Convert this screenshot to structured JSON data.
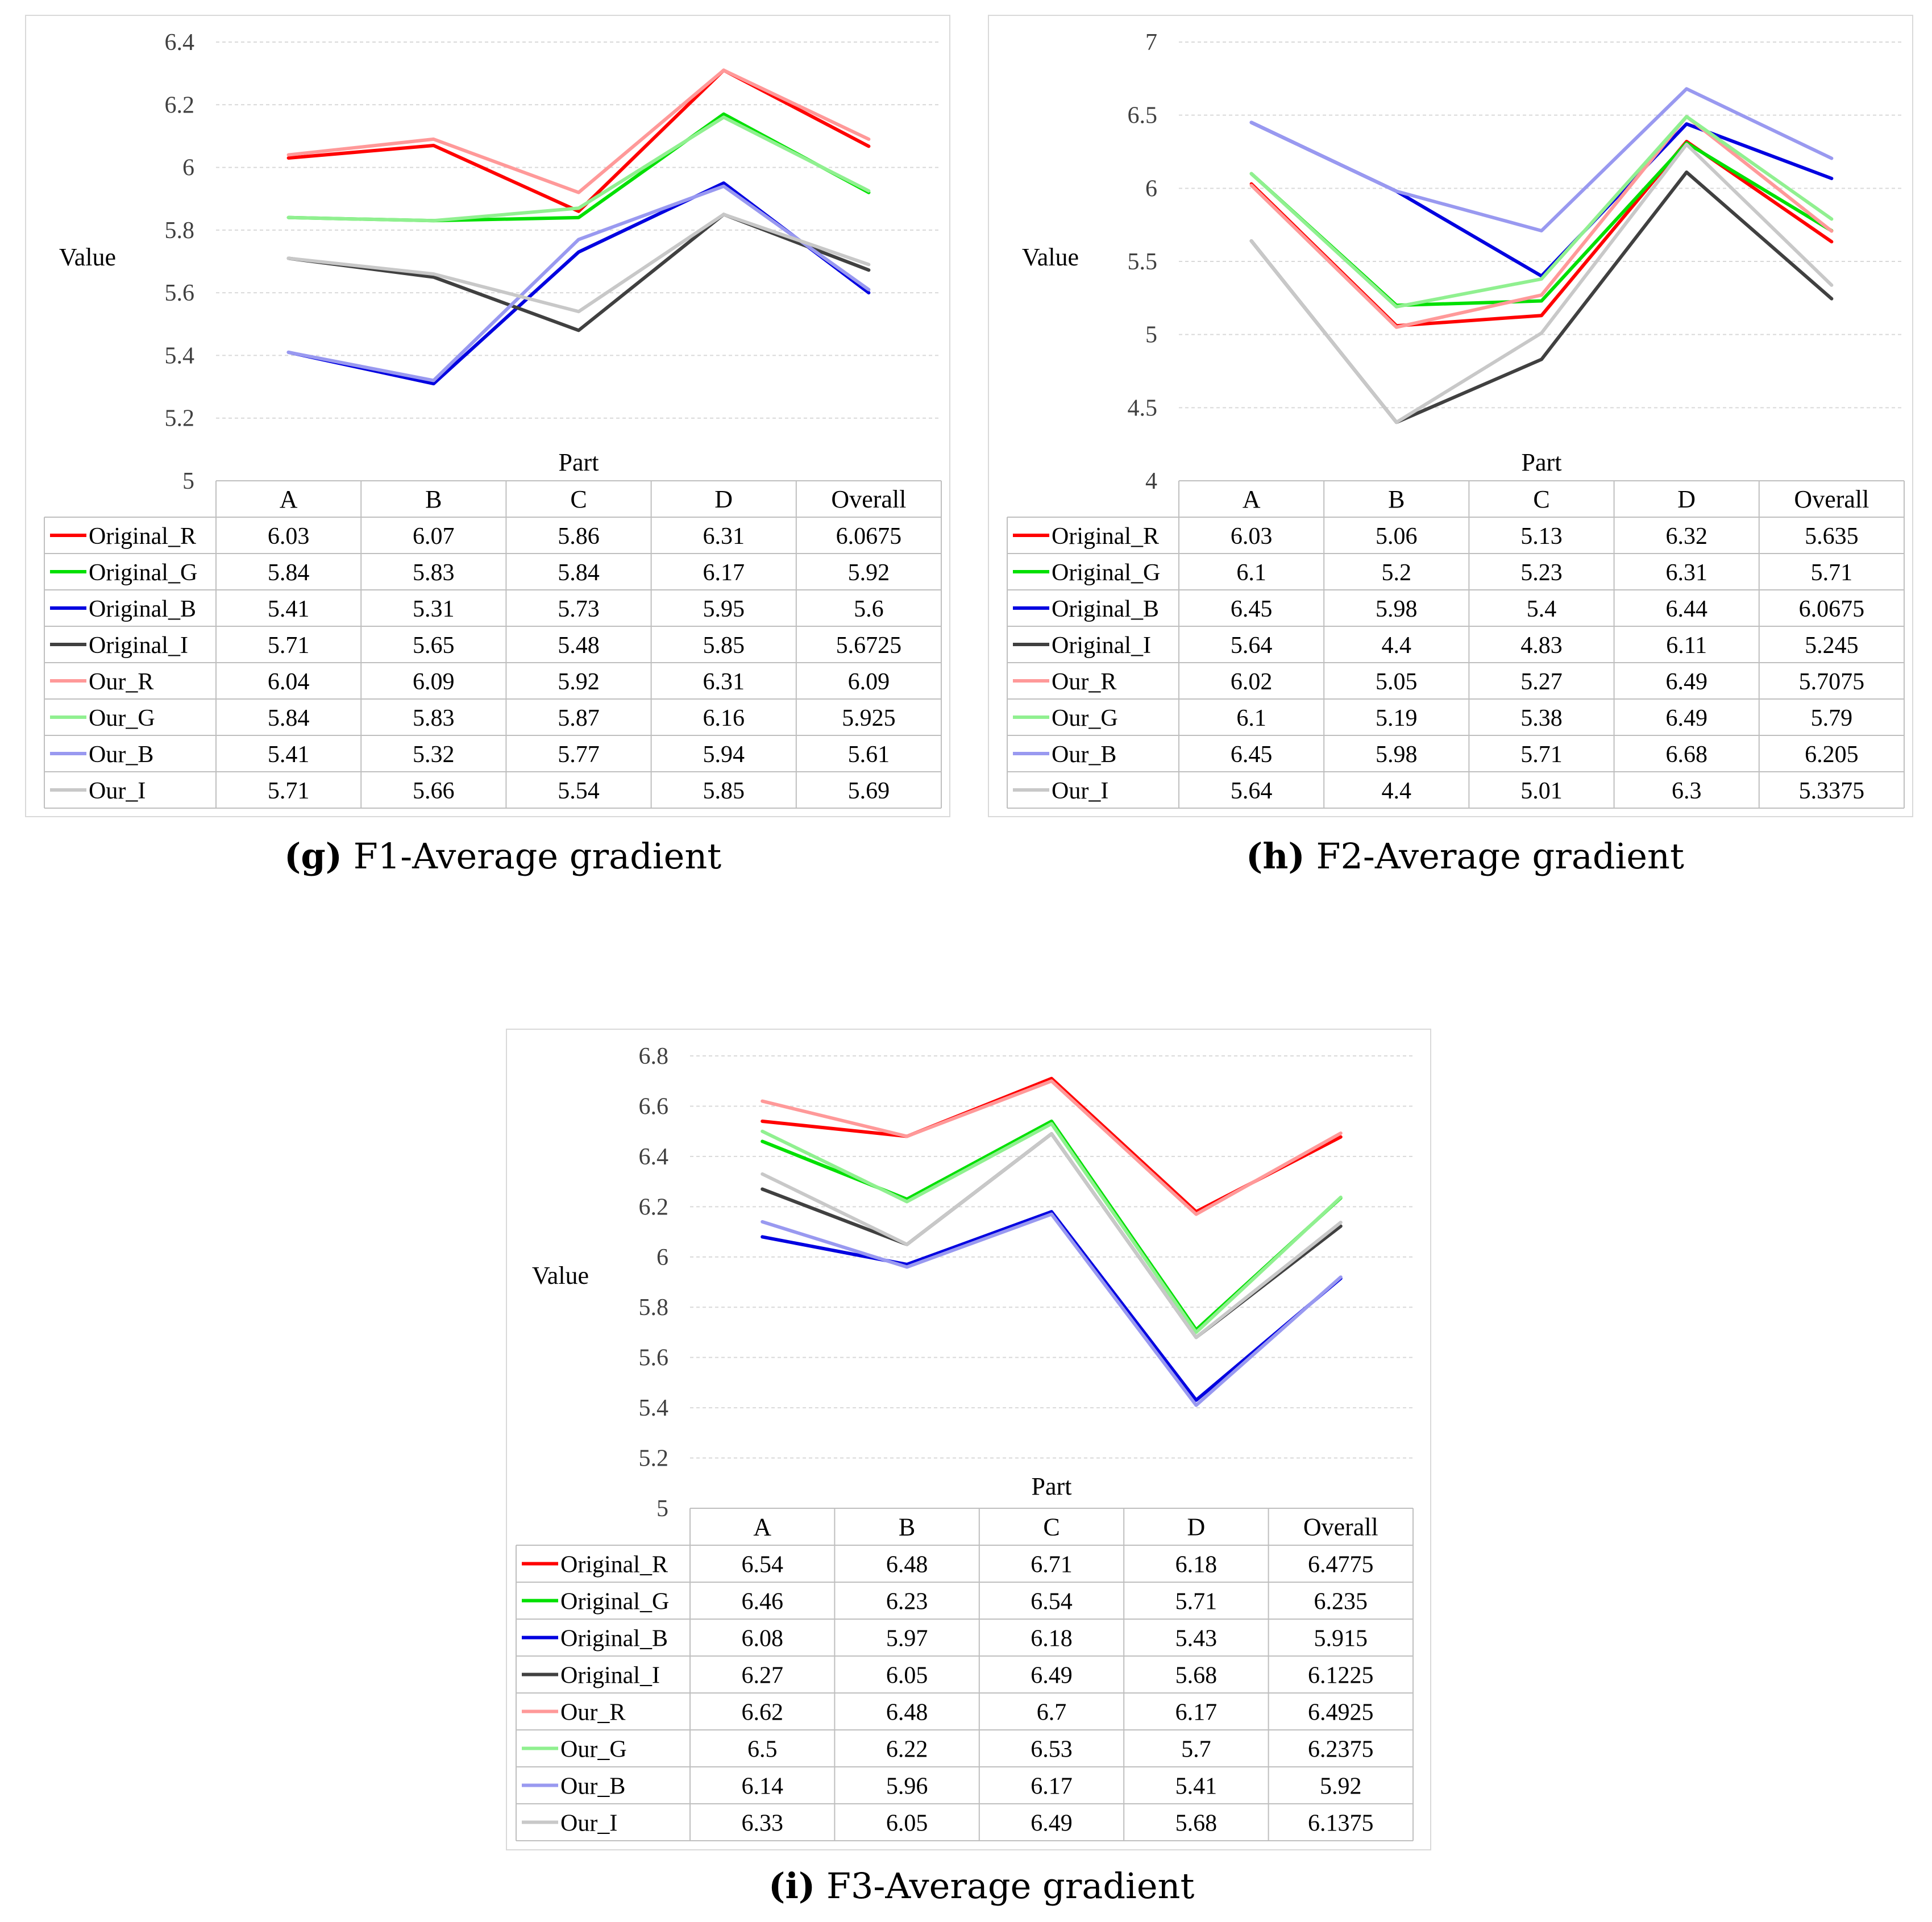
{
  "chart_data": [
    {
      "type": "line",
      "panel_label": "(g)",
      "caption_text": "F1-Average gradient",
      "ylabel": "Value",
      "xlabel": "Part",
      "ylim": [
        5,
        6.4
      ],
      "yticks": [
        5,
        5.2,
        5.4,
        5.6,
        5.8,
        6,
        6.2,
        6.4
      ],
      "ytick_labels": [
        "5",
        "5.2",
        "5.4",
        "5.6",
        "5.8",
        "6",
        "6.2",
        "6.4"
      ],
      "categories": [
        "A",
        "B",
        "C",
        "D",
        "Overall"
      ],
      "series": [
        {
          "name": "Original_R",
          "color": "#ff0000",
          "values": [
            6.03,
            6.07,
            5.86,
            6.31,
            6.0675
          ],
          "labels": [
            "6.03",
            "6.07",
            "5.86",
            "6.31",
            "6.0675"
          ]
        },
        {
          "name": "Original_G",
          "color": "#00e000",
          "values": [
            5.84,
            5.83,
            5.84,
            6.17,
            5.92
          ],
          "labels": [
            "5.84",
            "5.83",
            "5.84",
            "6.17",
            "5.92"
          ]
        },
        {
          "name": "Original_B",
          "color": "#0000e0",
          "values": [
            5.41,
            5.31,
            5.73,
            5.95,
            5.6
          ],
          "labels": [
            "5.41",
            "5.31",
            "5.73",
            "5.95",
            "5.6"
          ]
        },
        {
          "name": "Original_I",
          "color": "#404040",
          "values": [
            5.71,
            5.65,
            5.48,
            5.85,
            5.6725
          ],
          "labels": [
            "5.71",
            "5.65",
            "5.48",
            "5.85",
            "5.6725"
          ]
        },
        {
          "name": "Our_R",
          "color": "#ff9999",
          "values": [
            6.04,
            6.09,
            5.92,
            6.31,
            6.09
          ],
          "labels": [
            "6.04",
            "6.09",
            "5.92",
            "6.31",
            "6.09"
          ]
        },
        {
          "name": "Our_G",
          "color": "#90f090",
          "values": [
            5.84,
            5.83,
            5.87,
            6.16,
            5.925
          ],
          "labels": [
            "5.84",
            "5.83",
            "5.87",
            "6.16",
            "5.925"
          ]
        },
        {
          "name": "Our_B",
          "color": "#9999f0",
          "values": [
            5.41,
            5.32,
            5.77,
            5.94,
            5.61
          ],
          "labels": [
            "5.41",
            "5.32",
            "5.77",
            "5.94",
            "5.61"
          ]
        },
        {
          "name": "Our_I",
          "color": "#c8c8c8",
          "values": [
            5.71,
            5.66,
            5.54,
            5.85,
            5.69
          ],
          "labels": [
            "5.71",
            "5.66",
            "5.54",
            "5.85",
            "5.69"
          ]
        }
      ]
    },
    {
      "type": "line",
      "panel_label": "(h)",
      "caption_text": "F2-Average gradient",
      "ylabel": "Value",
      "xlabel": "Part",
      "ylim": [
        4,
        7
      ],
      "yticks": [
        4,
        4.5,
        5,
        5.5,
        6,
        6.5,
        7
      ],
      "ytick_labels": [
        "4",
        "4.5",
        "5",
        "5.5",
        "6",
        "6.5",
        "7"
      ],
      "categories": [
        "A",
        "B",
        "C",
        "D",
        "Overall"
      ],
      "series": [
        {
          "name": "Original_R",
          "color": "#ff0000",
          "values": [
            6.03,
            5.06,
            5.13,
            6.32,
            5.635
          ],
          "labels": [
            "6.03",
            "5.06",
            "5.13",
            "6.32",
            "5.635"
          ]
        },
        {
          "name": "Original_G",
          "color": "#00e000",
          "values": [
            6.1,
            5.2,
            5.23,
            6.31,
            5.71
          ],
          "labels": [
            "6.1",
            "5.2",
            "5.23",
            "6.31",
            "5.71"
          ]
        },
        {
          "name": "Original_B",
          "color": "#0000e0",
          "values": [
            6.45,
            5.98,
            5.4,
            6.44,
            6.0675
          ],
          "labels": [
            "6.45",
            "5.98",
            "5.4",
            "6.44",
            "6.0675"
          ]
        },
        {
          "name": "Original_I",
          "color": "#404040",
          "values": [
            5.64,
            4.4,
            4.83,
            6.11,
            5.245
          ],
          "labels": [
            "5.64",
            "4.4",
            "4.83",
            "6.11",
            "5.245"
          ]
        },
        {
          "name": "Our_R",
          "color": "#ff9999",
          "values": [
            6.02,
            5.05,
            5.27,
            6.49,
            5.7075
          ],
          "labels": [
            "6.02",
            "5.05",
            "5.27",
            "6.49",
            "5.7075"
          ]
        },
        {
          "name": "Our_G",
          "color": "#90f090",
          "values": [
            6.1,
            5.19,
            5.38,
            6.49,
            5.79
          ],
          "labels": [
            "6.1",
            "5.19",
            "5.38",
            "6.49",
            "5.79"
          ]
        },
        {
          "name": "Our_B",
          "color": "#9999f0",
          "values": [
            6.45,
            5.98,
            5.71,
            6.68,
            6.205
          ],
          "labels": [
            "6.45",
            "5.98",
            "5.71",
            "6.68",
            "6.205"
          ]
        },
        {
          "name": "Our_I",
          "color": "#c8c8c8",
          "values": [
            5.64,
            4.4,
            5.01,
            6.3,
            5.3375
          ],
          "labels": [
            "5.64",
            "4.4",
            "5.01",
            "6.3",
            "5.3375"
          ]
        }
      ]
    },
    {
      "type": "line",
      "panel_label": "(i)",
      "caption_text": "F3-Average gradient",
      "ylabel": "Value",
      "xlabel": "Part",
      "ylim": [
        5,
        6.8
      ],
      "yticks": [
        5,
        5.2,
        5.4,
        5.6,
        5.8,
        6,
        6.2,
        6.4,
        6.6,
        6.8
      ],
      "ytick_labels": [
        "5",
        "5.2",
        "5.4",
        "5.6",
        "5.8",
        "6",
        "6.2",
        "6.4",
        "6.6",
        "6.8"
      ],
      "categories": [
        "A",
        "B",
        "C",
        "D",
        "Overall"
      ],
      "series": [
        {
          "name": "Original_R",
          "color": "#ff0000",
          "values": [
            6.54,
            6.48,
            6.71,
            6.18,
            6.4775
          ],
          "labels": [
            "6.54",
            "6.48",
            "6.71",
            "6.18",
            "6.4775"
          ]
        },
        {
          "name": "Original_G",
          "color": "#00e000",
          "values": [
            6.46,
            6.23,
            6.54,
            5.71,
            6.235
          ],
          "labels": [
            "6.46",
            "6.23",
            "6.54",
            "5.71",
            "6.235"
          ]
        },
        {
          "name": "Original_B",
          "color": "#0000e0",
          "values": [
            6.08,
            5.97,
            6.18,
            5.43,
            5.915
          ],
          "labels": [
            "6.08",
            "5.97",
            "6.18",
            "5.43",
            "5.915"
          ]
        },
        {
          "name": "Original_I",
          "color": "#404040",
          "values": [
            6.27,
            6.05,
            6.49,
            5.68,
            6.1225
          ],
          "labels": [
            "6.27",
            "6.05",
            "6.49",
            "5.68",
            "6.1225"
          ]
        },
        {
          "name": "Our_R",
          "color": "#ff9999",
          "values": [
            6.62,
            6.48,
            6.7,
            6.17,
            6.4925
          ],
          "labels": [
            "6.62",
            "6.48",
            "6.7",
            "6.17",
            "6.4925"
          ]
        },
        {
          "name": "Our_G",
          "color": "#90f090",
          "values": [
            6.5,
            6.22,
            6.53,
            5.7,
            6.2375
          ],
          "labels": [
            "6.5",
            "6.22",
            "6.53",
            "5.7",
            "6.2375"
          ]
        },
        {
          "name": "Our_B",
          "color": "#9999f0",
          "values": [
            6.14,
            5.96,
            6.17,
            5.41,
            5.92
          ],
          "labels": [
            "6.14",
            "5.96",
            "6.17",
            "5.41",
            "5.92"
          ]
        },
        {
          "name": "Our_I",
          "color": "#c8c8c8",
          "values": [
            6.33,
            6.05,
            6.49,
            5.68,
            6.1375
          ],
          "labels": [
            "6.33",
            "6.05",
            "6.49",
            "5.68",
            "6.1375"
          ]
        }
      ]
    }
  ]
}
